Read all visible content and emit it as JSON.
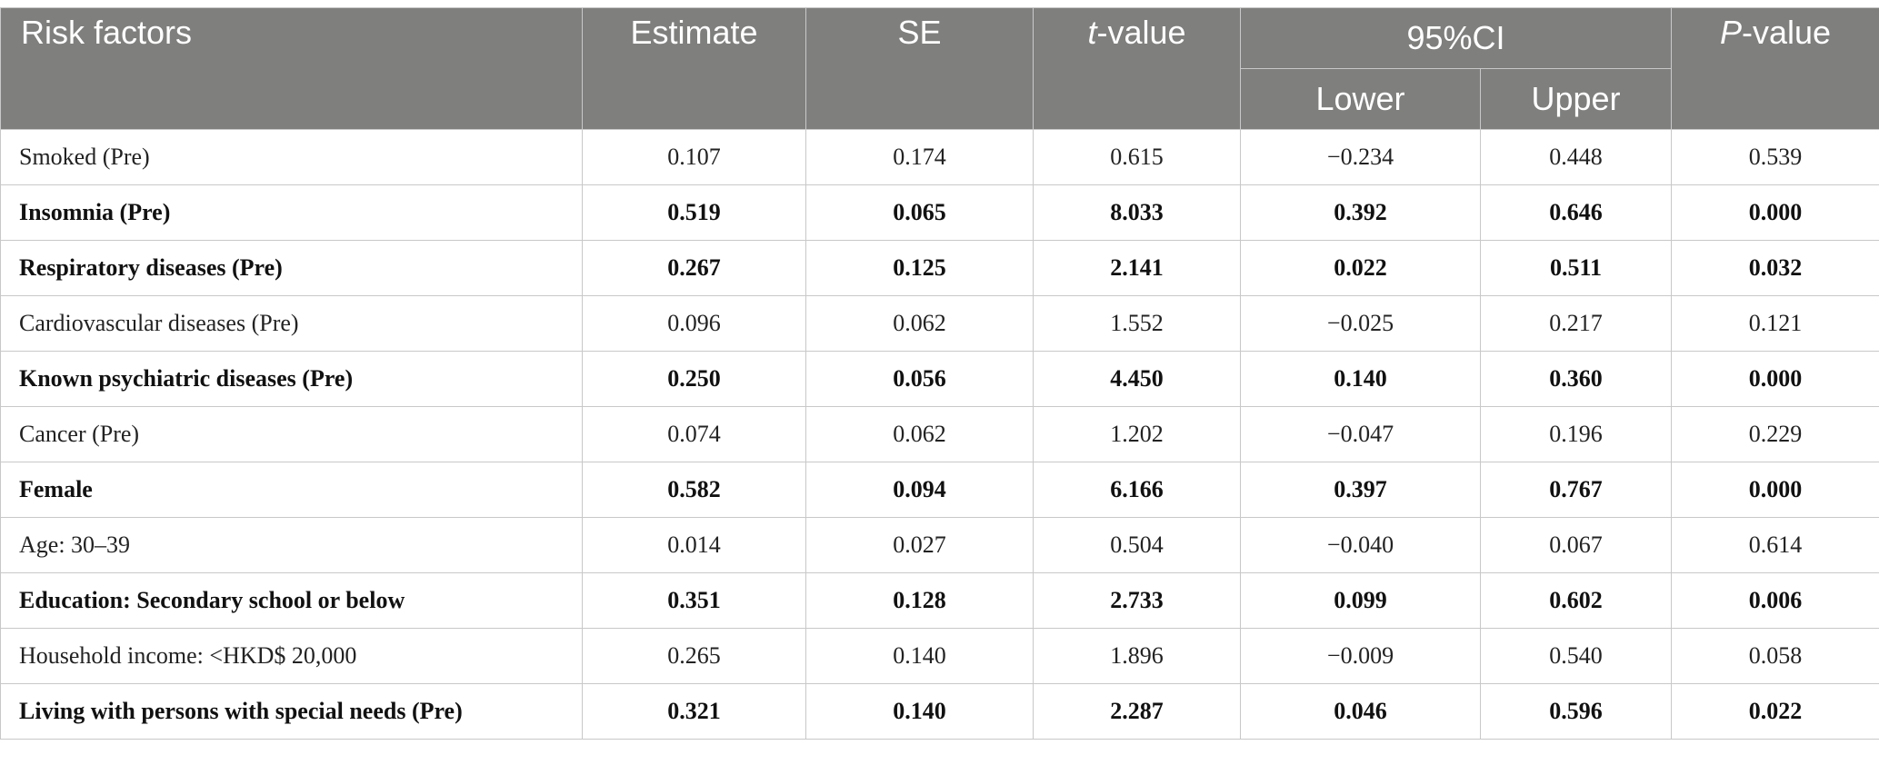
{
  "headers": {
    "factor": "Risk factors",
    "estimate": "Estimate",
    "se": "SE",
    "t_italic": "t",
    "t_rest": "-value",
    "ci": "95%CI",
    "lower": "Lower",
    "upper": "Upper",
    "p_italic": "P",
    "p_rest": "-value"
  },
  "rows": [
    {
      "factor": "Smoked (Pre)",
      "estimate": "0.107",
      "se": "0.174",
      "t": "0.615",
      "lower": "−0.234",
      "upper": "0.448",
      "p": "0.539",
      "bold": false
    },
    {
      "factor": "Insomnia (Pre)",
      "estimate": "0.519",
      "se": "0.065",
      "t": "8.033",
      "lower": "0.392",
      "upper": "0.646",
      "p": "0.000",
      "bold": true
    },
    {
      "factor": "Respiratory diseases (Pre)",
      "estimate": "0.267",
      "se": "0.125",
      "t": "2.141",
      "lower": "0.022",
      "upper": "0.511",
      "p": "0.032",
      "bold": true
    },
    {
      "factor": "Cardiovascular diseases (Pre)",
      "estimate": "0.096",
      "se": "0.062",
      "t": "1.552",
      "lower": "−0.025",
      "upper": "0.217",
      "p": "0.121",
      "bold": false
    },
    {
      "factor": "Known psychiatric diseases (Pre)",
      "estimate": "0.250",
      "se": "0.056",
      "t": "4.450",
      "lower": "0.140",
      "upper": "0.360",
      "p": "0.000",
      "bold": true
    },
    {
      "factor": "Cancer (Pre)",
      "estimate": "0.074",
      "se": "0.062",
      "t": "1.202",
      "lower": "−0.047",
      "upper": "0.196",
      "p": "0.229",
      "bold": false
    },
    {
      "factor": "Female",
      "estimate": "0.582",
      "se": "0.094",
      "t": "6.166",
      "lower": "0.397",
      "upper": "0.767",
      "p": "0.000",
      "bold": true
    },
    {
      "factor": "Age: 30–39",
      "estimate": "0.014",
      "se": "0.027",
      "t": "0.504",
      "lower": "−0.040",
      "upper": "0.067",
      "p": "0.614",
      "bold": false
    },
    {
      "factor": "Education: Secondary school or below",
      "estimate": "0.351",
      "se": "0.128",
      "t": "2.733",
      "lower": "0.099",
      "upper": "0.602",
      "p": "0.006",
      "bold": true
    },
    {
      "factor": "Household income: <HKD$ 20,000",
      "estimate": "0.265",
      "se": "0.140",
      "t": "1.896",
      "lower": "−0.009",
      "upper": "0.540",
      "p": "0.058",
      "bold": false
    },
    {
      "factor": "Living with persons with special needs (Pre)",
      "estimate": "0.321",
      "se": "0.140",
      "t": "2.287",
      "lower": "0.046",
      "upper": "0.596",
      "p": "0.022",
      "bold": true
    }
  ]
}
